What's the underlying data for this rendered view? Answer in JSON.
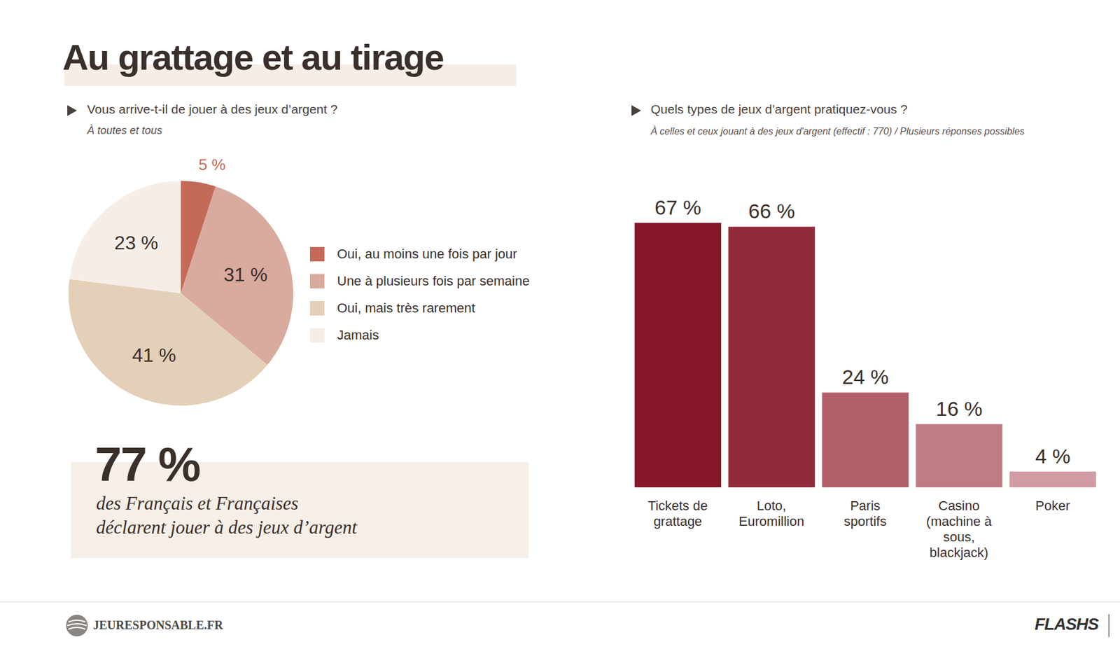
{
  "title": "Au grattage et au tirage",
  "highlight": {
    "label": "77 %",
    "lines": [
      "des Français et Françaises",
      "déclarent jouer à des jeux d’argent"
    ]
  },
  "footer": {
    "source": "JEURESPONSABLE.FR",
    "brand": "FLASHS"
  },
  "chart_data": [
    {
      "type": "pie",
      "title": "Vous arrive-t-il de jouer à des jeux d’argent ?",
      "subtitle": "À toutes et tous",
      "categories": [
        "Oui, au moins une fois par jour",
        "Une à plusieurs fois par semaine",
        "Oui, mais très rarement",
        "Jamais"
      ],
      "values": [
        5,
        31,
        41,
        23
      ],
      "value_labels": [
        "5 %",
        "31 %",
        "41 %",
        "23 %"
      ],
      "colors": [
        "#c46a58",
        "#d9aa9e",
        "#e4cfb8",
        "#f6eee6"
      ],
      "data_labels": true,
      "legend": "right"
    },
    {
      "type": "bar",
      "title": "Quels types de jeux d’argent pratiquez-vous ?",
      "subtitle": "À celles et ceux jouant à des jeux d'argent (effectif : 770) / Plusieurs réponses possibles",
      "categories": [
        "Tickets de grattage",
        "Loto, Euromillion",
        "Paris sportifs",
        "Casino (machine à sous, blackjack)",
        "Poker"
      ],
      "values": [
        67,
        66,
        24,
        16,
        4
      ],
      "value_labels": [
        "67 %",
        "66 %",
        "24 %",
        "16 %",
        "4 %"
      ],
      "colors": [
        "#86182a",
        "#912b3b",
        "#b15f69",
        "#c07c85",
        "#d29ba3"
      ],
      "ylim": [
        0,
        70
      ],
      "data_labels": true,
      "tick_labels": false
    }
  ]
}
